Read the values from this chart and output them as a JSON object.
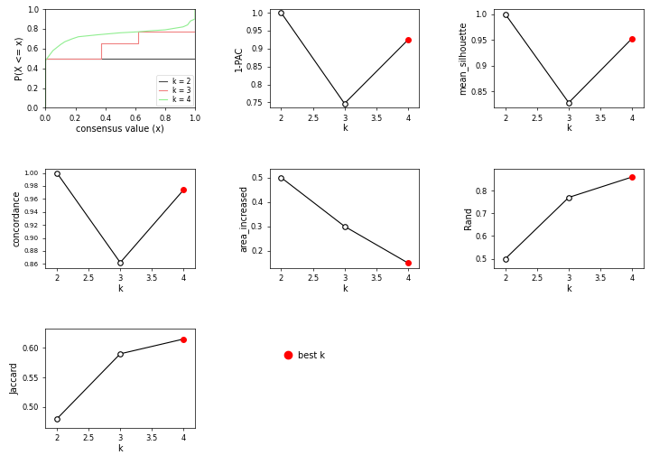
{
  "k_values": [
    2,
    3,
    4
  ],
  "pac_1_values": [
    1.0,
    0.747,
    0.924
  ],
  "mean_silhouette_values": [
    1.0,
    0.828,
    0.953
  ],
  "concordance_values": [
    1.0,
    0.862,
    0.974
  ],
  "area_increased_values": [
    0.5,
    0.3,
    0.15
  ],
  "rand_values": [
    0.5,
    0.77,
    0.86
  ],
  "jaccard_values": [
    0.48,
    0.59,
    0.615
  ],
  "best_k": 4,
  "ecdf_legend_labels": [
    "k = 2",
    "k = 3",
    "k = 4"
  ],
  "ecdf_colors": [
    "#4a4a4a",
    "#f08080",
    "#90ee90"
  ],
  "background_color": "#ffffff",
  "fig_width": 7.2,
  "fig_height": 5.04,
  "dpi": 100
}
